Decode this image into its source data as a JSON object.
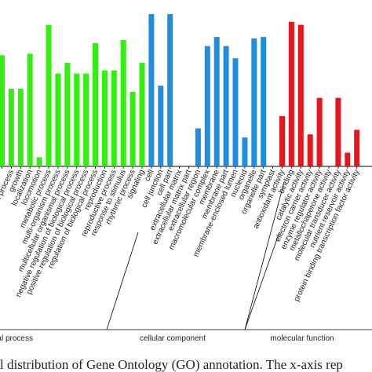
{
  "chart_data": {
    "type": "bar",
    "ylim": [
      0,
      100
    ],
    "caption": "l distribution of Gene Ontology (GO) annotation. The x-axis rep",
    "groups": [
      {
        "name": "biological process",
        "color": "#33ee11",
        "categories": [
          null,
          "immune system process",
          "growth",
          "localization",
          "locomotion",
          "metabolic process",
          "multi-organism process",
          "multicellular organismal process",
          "negative regulation of biological process",
          "positive regulation of biological process",
          "regulation of biological process",
          "reproduction",
          "reproductive process",
          "response to stimulus",
          "rhythmic process",
          "signaling"
        ],
        "values": [
          73,
          51,
          51,
          74,
          6,
          93,
          61,
          68,
          61,
          61,
          81,
          63,
          63,
          83,
          49,
          68
        ]
      },
      {
        "name": "cellular component",
        "color": "#1e8fe0",
        "categories": [
          "cell",
          "cell junction",
          "cell part",
          "extracellular matrix",
          "extracellular matrix part",
          "extracellular region",
          "macromolecular complex",
          "membrane",
          "membrane part",
          "membrane-enclosed lumen",
          "nucleoid",
          "organelle",
          "organelle part",
          "symplast"
        ],
        "values": [
          100,
          53,
          100,
          0,
          0,
          25,
          79,
          85,
          79,
          71,
          19,
          84,
          85,
          0
        ]
      },
      {
        "name": "molecular function",
        "color": "#e8141e",
        "categories": [
          "antioxidant activity",
          "binding",
          "catalytic activity",
          "electron carrier activity",
          "enzyme regulator activity",
          "metallochaperone activity",
          "molecular transducer activity",
          "nutrient reservoir activity",
          "protein binding transcription factor activity"
        ],
        "values": [
          33,
          95,
          93,
          21,
          45,
          0,
          45,
          9,
          24
        ]
      }
    ]
  }
}
